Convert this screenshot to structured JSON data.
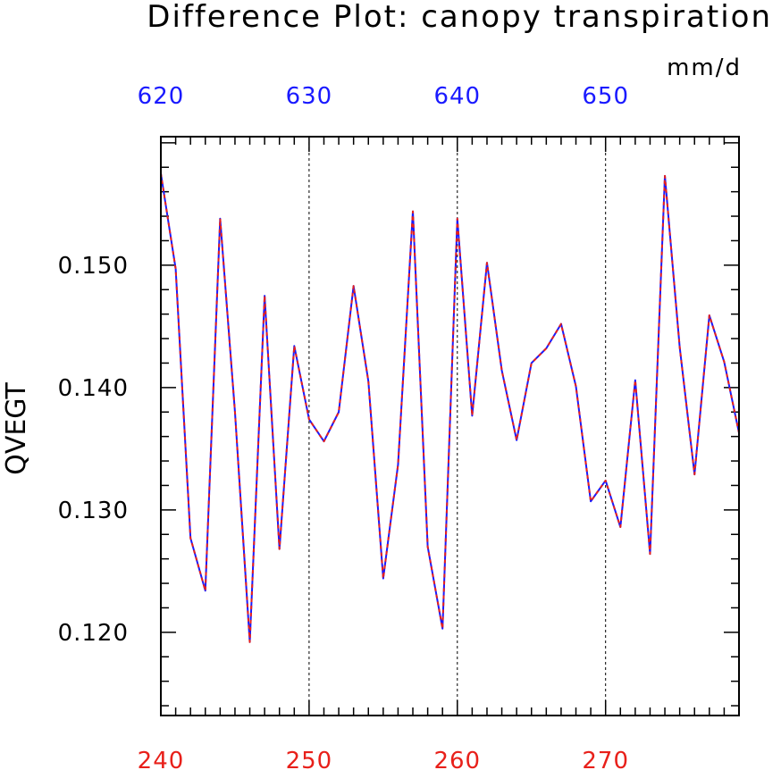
{
  "chart_data": {
    "type": "line",
    "title": "Difference Plot: canopy transpiration",
    "units": "mm/d",
    "ylabel": "QVEGT",
    "ylim": [
      0.1132,
      0.1605
    ],
    "y_ticks": [
      "0.120",
      "0.130",
      "0.140",
      "0.150"
    ],
    "y_tick_values": [
      0.12,
      0.13,
      0.14,
      0.15
    ],
    "x_bottom": {
      "range": [
        240,
        279
      ],
      "ticks": [
        "240",
        "250",
        "260",
        "270"
      ],
      "tick_values": [
        240,
        250,
        260,
        270
      ],
      "color": "#e8201a"
    },
    "x_top": {
      "range": [
        620,
        659
      ],
      "ticks": [
        "620",
        "630",
        "640",
        "650"
      ],
      "tick_values": [
        620,
        630,
        640,
        650
      ],
      "color": "#1a1aff"
    },
    "grid": "vertical dotted at major x ticks",
    "series": [
      {
        "color": "#1a1aff",
        "style": "solid",
        "x": [
          240,
          241,
          242,
          243,
          244,
          245,
          246,
          247,
          248,
          249,
          250,
          251,
          252,
          253,
          254,
          255,
          256,
          257,
          258,
          259,
          260,
          261,
          262,
          263,
          264,
          265,
          266,
          267,
          268,
          269,
          270,
          271,
          272,
          273,
          274,
          275,
          276,
          277,
          278,
          279
        ],
        "values": [
          0.1575,
          0.1497,
          0.1277,
          0.1234,
          0.1538,
          0.138,
          0.1192,
          0.1475,
          0.1268,
          0.1434,
          0.1374,
          0.1356,
          0.138,
          0.1483,
          0.1405,
          0.1244,
          0.1337,
          0.1544,
          0.127,
          0.1203,
          0.1538,
          0.1377,
          0.1502,
          0.1414,
          0.1357,
          0.142,
          0.1432,
          0.1452,
          0.1401,
          0.1307,
          0.1324,
          0.1286,
          0.1406,
          0.1264,
          0.1573,
          0.1433,
          0.1329,
          0.1459,
          0.1421,
          0.1363
        ]
      },
      {
        "color": "#e8201a",
        "style": "dashed",
        "x": [
          620,
          621,
          622,
          623,
          624,
          625,
          626,
          627,
          628,
          629,
          630,
          631,
          632,
          633,
          634,
          635,
          636,
          637,
          638,
          639,
          640,
          641,
          642,
          643,
          644,
          645,
          646,
          647,
          648,
          649,
          650,
          651,
          652,
          653,
          654,
          655,
          656,
          657,
          658,
          659
        ],
        "values": [
          0.1575,
          0.1497,
          0.1277,
          0.1234,
          0.1538,
          0.138,
          0.1192,
          0.1475,
          0.1268,
          0.1434,
          0.1374,
          0.1356,
          0.138,
          0.1483,
          0.1405,
          0.1244,
          0.1337,
          0.1544,
          0.127,
          0.1203,
          0.1538,
          0.1377,
          0.1502,
          0.1414,
          0.1357,
          0.142,
          0.1432,
          0.1452,
          0.1401,
          0.1307,
          0.1324,
          0.1286,
          0.1406,
          0.1264,
          0.1573,
          0.1433,
          0.1329,
          0.1459,
          0.1421,
          0.1363
        ]
      }
    ]
  }
}
